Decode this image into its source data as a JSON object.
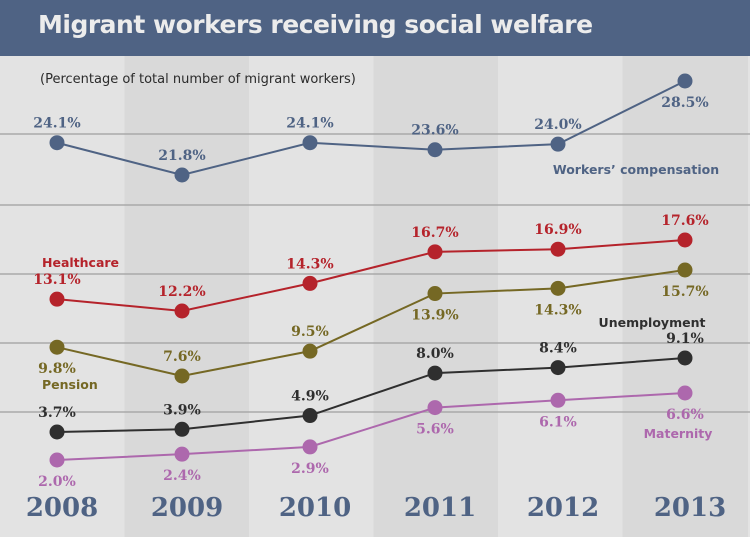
{
  "chart_data": {
    "type": "line",
    "title": "Migrant workers receiving social welfare",
    "subtitle": "(Percentage of total number of migrant workers)",
    "xlabel": "",
    "ylabel": "",
    "x": [
      "2008",
      "2009",
      "2010",
      "2011",
      "2012",
      "2013"
    ],
    "grid": true,
    "legend": "inline labels",
    "series": [
      {
        "name": "Workers' compensation",
        "label": "Workers’ compensation",
        "color": "#4f6384",
        "values": [
          24.1,
          21.8,
          24.1,
          23.6,
          24.0,
          28.5
        ]
      },
      {
        "name": "Healthcare",
        "label": "Healthcare",
        "color": "#b5232b",
        "values": [
          13.1,
          12.2,
          14.3,
          16.7,
          16.9,
          17.6
        ]
      },
      {
        "name": "Pension",
        "label": "Pension",
        "color": "#756824",
        "values": [
          9.8,
          7.6,
          9.5,
          13.9,
          14.3,
          15.7
        ]
      },
      {
        "name": "Unemployment",
        "label": "Unemployment",
        "color": "#2f2f2f",
        "values": [
          3.7,
          3.9,
          4.9,
          8.0,
          8.4,
          9.1
        ]
      },
      {
        "name": "Maternity",
        "label": "Maternity",
        "color": "#ad68ad",
        "values": [
          2.0,
          2.4,
          2.9,
          5.6,
          6.1,
          6.6
        ]
      }
    ],
    "value_labels": [
      [
        "24.1%",
        "21.8%",
        "24.1%",
        "23.6%",
        "24.0%",
        "28.5%"
      ],
      [
        "13.1%",
        "12.2%",
        "14.3%",
        "16.7%",
        "16.9%",
        "17.6%"
      ],
      [
        "9.8%",
        "7.6%",
        "9.5%",
        "13.9%",
        "14.3%",
        "15.7%"
      ],
      [
        "3.7%",
        "3.9%",
        "4.9%",
        "8.0%",
        "8.4%",
        "9.1%"
      ],
      [
        "2.0%",
        "2.4%",
        "2.9%",
        "5.6%",
        "6.1%",
        "6.6%"
      ]
    ]
  },
  "colors": {
    "header_bg": "#4f6384",
    "title_text": "#ececec",
    "band_light": "#e3e3e3",
    "band_dark": "#d9d9d9",
    "gridline": "#a9a9a9"
  }
}
